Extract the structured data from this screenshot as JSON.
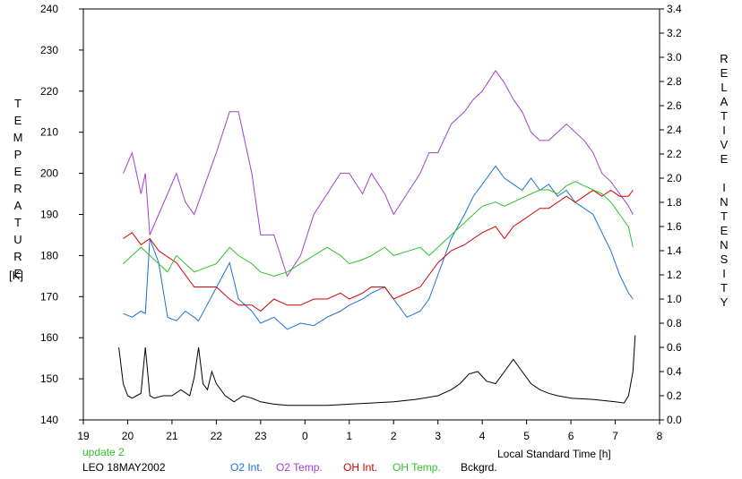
{
  "chart_data": {
    "type": "line",
    "xlabel": "Local Standard Time [h]",
    "ylabel_left": "TEMPERATURE",
    "ylabel_left_unit": "[K]",
    "ylabel_right": "RELATIVE INTENSITY",
    "x_ticks": [
      "19",
      "20",
      "21",
      "22",
      "23",
      "0",
      "1",
      "2",
      "3",
      "4",
      "5",
      "6",
      "7",
      "8"
    ],
    "xlim": [
      19,
      32
    ],
    "ylim_left": [
      140,
      240
    ],
    "ylim_right": [
      0.0,
      3.4
    ],
    "y_ticks_left": [
      "140",
      "150",
      "160",
      "170",
      "180",
      "190",
      "200",
      "210",
      "220",
      "230",
      "240"
    ],
    "y_ticks_right": [
      "0.0",
      "0.2",
      "0.4",
      "0.6",
      "0.8",
      "1.0",
      "1.2",
      "1.4",
      "1.6",
      "1.8",
      "2.0",
      "2.2",
      "2.4",
      "2.6",
      "2.8",
      "3.0",
      "3.2",
      "3.4"
    ],
    "annotations": {
      "update": "update 2",
      "site_date": "LEO 18MAY2002"
    },
    "colors": {
      "o2int": "#1c6fd6",
      "o2temp": "#a040d0",
      "ohint": "#d40000",
      "ohtemp": "#2ec12e",
      "bckgrd": "#000000",
      "update": "#2ec12e"
    },
    "series": [
      {
        "name": "O2 Int.",
        "axis": "right",
        "color": "#1c6fd6",
        "x": [
          19.9,
          20.1,
          20.3,
          20.4,
          20.5,
          20.7,
          20.9,
          21.1,
          21.3,
          21.5,
          21.6,
          22.3,
          22.5,
          22.8,
          23.0,
          23.3,
          23.6,
          23.9,
          24.2,
          24.5,
          24.8,
          25.0,
          25.3,
          25.5,
          25.8,
          26.0,
          26.3,
          26.6,
          26.8,
          27.0,
          27.3,
          27.6,
          27.8,
          28.0,
          28.3,
          28.5,
          28.7,
          28.9,
          29.1,
          29.3,
          29.5,
          29.7,
          29.9,
          30.1,
          30.3,
          30.5,
          30.7,
          30.9,
          31.1,
          31.3,
          31.4
        ],
        "y": [
          0.88,
          0.85,
          0.9,
          0.88,
          1.5,
          1.3,
          0.85,
          0.82,
          0.9,
          0.85,
          0.82,
          1.3,
          1.0,
          0.9,
          0.8,
          0.85,
          0.75,
          0.8,
          0.78,
          0.85,
          0.9,
          0.95,
          1.0,
          1.05,
          1.1,
          1.0,
          0.85,
          0.9,
          1.0,
          1.2,
          1.5,
          1.7,
          1.85,
          1.95,
          2.1,
          2.0,
          1.95,
          1.9,
          2.0,
          1.9,
          1.95,
          1.85,
          1.9,
          1.8,
          1.75,
          1.7,
          1.55,
          1.4,
          1.2,
          1.05,
          1.0
        ]
      },
      {
        "name": "O2 Temp.",
        "axis": "left",
        "color": "#a040d0",
        "x": [
          19.9,
          20.1,
          20.3,
          20.4,
          20.5,
          20.7,
          20.9,
          21.1,
          21.3,
          21.5,
          22.0,
          22.3,
          22.5,
          22.8,
          23.0,
          23.3,
          23.6,
          23.9,
          24.2,
          24.5,
          24.8,
          25.0,
          25.3,
          25.5,
          25.8,
          26.0,
          26.3,
          26.6,
          26.8,
          27.0,
          27.3,
          27.6,
          27.8,
          28.0,
          28.3,
          28.5,
          28.7,
          28.9,
          29.1,
          29.3,
          29.5,
          29.7,
          29.9,
          30.1,
          30.3,
          30.5,
          30.7,
          30.9,
          31.1,
          31.3,
          31.4
        ],
        "y": [
          200,
          205,
          195,
          200,
          185,
          190,
          195,
          200,
          193,
          190,
          205,
          215,
          215,
          200,
          185,
          185,
          175,
          180,
          190,
          195,
          200,
          200,
          195,
          200,
          195,
          190,
          195,
          200,
          205,
          205,
          212,
          215,
          218,
          220,
          225,
          222,
          218,
          215,
          210,
          208,
          208,
          210,
          212,
          210,
          208,
          205,
          200,
          198,
          195,
          192,
          190
        ]
      },
      {
        "name": "OH Int.",
        "axis": "right",
        "color": "#d40000",
        "x": [
          19.9,
          20.1,
          20.3,
          20.5,
          20.7,
          20.9,
          21.1,
          21.3,
          21.5,
          22.0,
          22.3,
          22.5,
          22.8,
          23.0,
          23.3,
          23.6,
          23.9,
          24.2,
          24.5,
          24.8,
          25.0,
          25.3,
          25.5,
          25.8,
          26.0,
          26.3,
          26.6,
          26.8,
          27.0,
          27.3,
          27.6,
          27.8,
          28.0,
          28.3,
          28.5,
          28.7,
          28.9,
          29.1,
          29.3,
          29.5,
          29.7,
          29.9,
          30.1,
          30.3,
          30.5,
          30.7,
          30.9,
          31.1,
          31.3,
          31.4
        ],
        "y": [
          1.5,
          1.55,
          1.45,
          1.5,
          1.4,
          1.35,
          1.3,
          1.2,
          1.1,
          1.1,
          1.0,
          0.95,
          0.95,
          0.9,
          1.0,
          0.95,
          0.95,
          1.0,
          1.0,
          1.05,
          1.0,
          1.05,
          1.1,
          1.1,
          1.0,
          1.05,
          1.1,
          1.2,
          1.3,
          1.4,
          1.45,
          1.5,
          1.55,
          1.6,
          1.5,
          1.6,
          1.65,
          1.7,
          1.75,
          1.75,
          1.8,
          1.85,
          1.8,
          1.85,
          1.9,
          1.85,
          1.9,
          1.85,
          1.85,
          1.9
        ]
      },
      {
        "name": "OH Temp.",
        "axis": "left",
        "color": "#2ec12e",
        "x": [
          19.9,
          20.1,
          20.3,
          20.5,
          20.7,
          20.9,
          21.1,
          21.3,
          21.5,
          22.0,
          22.3,
          22.5,
          22.8,
          23.0,
          23.3,
          23.6,
          23.9,
          24.2,
          24.5,
          24.8,
          25.0,
          25.3,
          25.5,
          25.8,
          26.0,
          26.3,
          26.6,
          26.8,
          27.0,
          27.3,
          27.6,
          27.8,
          28.0,
          28.3,
          28.5,
          28.7,
          28.9,
          29.1,
          29.3,
          29.5,
          29.7,
          29.9,
          30.1,
          30.3,
          30.5,
          30.7,
          30.9,
          31.1,
          31.3,
          31.4
        ],
        "y": [
          178,
          180,
          182,
          180,
          178,
          176,
          180,
          178,
          176,
          178,
          182,
          180,
          178,
          176,
          175,
          176,
          178,
          180,
          182,
          180,
          178,
          179,
          180,
          182,
          180,
          181,
          182,
          180,
          182,
          185,
          188,
          190,
          192,
          193,
          192,
          193,
          194,
          195,
          196,
          196,
          195,
          197,
          198,
          197,
          196,
          195,
          193,
          190,
          187,
          182
        ]
      },
      {
        "name": "Bckgrd.",
        "axis": "right",
        "color": "#000000",
        "x": [
          19.8,
          19.9,
          20.0,
          20.1,
          20.2,
          20.3,
          20.4,
          20.5,
          20.6,
          20.8,
          21.0,
          21.2,
          21.4,
          21.5,
          21.6,
          21.7,
          21.8,
          21.9,
          22.0,
          22.2,
          22.4,
          22.6,
          22.8,
          23.0,
          23.3,
          23.6,
          24.0,
          24.5,
          25.0,
          25.5,
          26.0,
          26.5,
          27.0,
          27.3,
          27.5,
          27.7,
          27.9,
          28.1,
          28.3,
          28.5,
          28.7,
          28.9,
          29.1,
          29.3,
          29.5,
          29.7,
          30.0,
          30.5,
          31.0,
          31.2,
          31.3,
          31.4,
          31.45
        ],
        "y": [
          0.6,
          0.3,
          0.2,
          0.18,
          0.2,
          0.22,
          0.6,
          0.2,
          0.18,
          0.2,
          0.2,
          0.25,
          0.2,
          0.35,
          0.6,
          0.3,
          0.25,
          0.4,
          0.3,
          0.2,
          0.15,
          0.2,
          0.18,
          0.15,
          0.13,
          0.12,
          0.12,
          0.12,
          0.13,
          0.14,
          0.15,
          0.17,
          0.2,
          0.25,
          0.3,
          0.38,
          0.4,
          0.32,
          0.3,
          0.4,
          0.5,
          0.4,
          0.3,
          0.25,
          0.22,
          0.2,
          0.18,
          0.17,
          0.15,
          0.14,
          0.2,
          0.4,
          0.7
        ]
      }
    ]
  }
}
